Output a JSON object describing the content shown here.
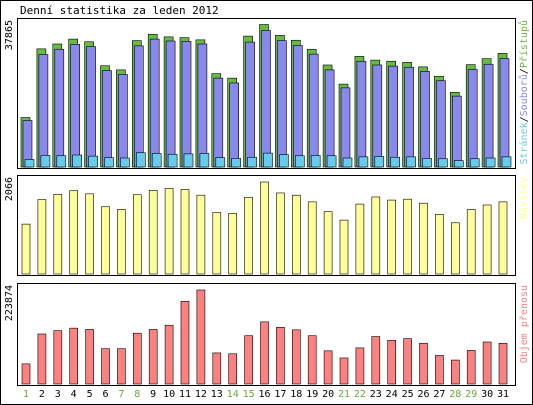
{
  "chart_data": [
    {
      "type": "bar",
      "title": "Denní statistika za leden 2012",
      "max_label": "37865",
      "legend": [
        {
          "name": "Stránek",
          "color": "#66ccee"
        },
        {
          "name": "Souborů",
          "color": "#8888ee"
        },
        {
          "name": "Přístupů",
          "color": "#66bb44"
        }
      ],
      "categories": [
        "1",
        "2",
        "3",
        "4",
        "5",
        "6",
        "7",
        "8",
        "9",
        "10",
        "11",
        "12",
        "13",
        "14",
        "15",
        "16",
        "17",
        "18",
        "19",
        "20",
        "21",
        "22",
        "23",
        "24",
        "25",
        "26",
        "27",
        "28",
        "29",
        "30",
        "31"
      ],
      "weekend_days": [
        "1",
        "7",
        "8",
        "14",
        "15",
        "21",
        "22",
        "28",
        "29"
      ],
      "ylim": [
        0,
        37865
      ],
      "series": [
        {
          "name": "Přístupů",
          "color": "#66bb44",
          "values": [
            13200,
            31500,
            32800,
            34100,
            33400,
            27000,
            25900,
            33700,
            35400,
            34700,
            34500,
            33900,
            24900,
            23700,
            34900,
            38000,
            35100,
            33800,
            31400,
            27200,
            22100,
            29500,
            28500,
            28200,
            27900,
            26700,
            24200,
            19900,
            27300,
            28900,
            30300
          ]
        },
        {
          "name": "Souborů",
          "color": "#8888ee",
          "values": [
            12400,
            30000,
            31400,
            32700,
            32100,
            25700,
            24700,
            32300,
            34100,
            33600,
            33500,
            32800,
            23700,
            22400,
            33300,
            36400,
            33700,
            32400,
            30100,
            25900,
            21100,
            28200,
            27200,
            26900,
            26600,
            25500,
            23000,
            18900,
            26000,
            27400,
            28900
          ]
        },
        {
          "name": "Stránek",
          "color": "#66ccee",
          "values": [
            2000,
            3100,
            3000,
            3200,
            2900,
            2500,
            2400,
            3800,
            3600,
            3400,
            3500,
            3600,
            2500,
            2300,
            2600,
            3700,
            3300,
            3000,
            3100,
            3000,
            2400,
            2700,
            2800,
            2600,
            2700,
            2300,
            2200,
            1700,
            2200,
            2400,
            2700
          ]
        }
      ]
    },
    {
      "type": "bar",
      "max_label": "2066",
      "legend": [
        {
          "name": "Návštěv",
          "color": "#ffff99"
        }
      ],
      "categories": [
        "1",
        "2",
        "3",
        "4",
        "5",
        "6",
        "7",
        "8",
        "9",
        "10",
        "11",
        "12",
        "13",
        "14",
        "15",
        "16",
        "17",
        "18",
        "19",
        "20",
        "21",
        "22",
        "23",
        "24",
        "25",
        "26",
        "27",
        "28",
        "29",
        "30",
        "31"
      ],
      "ylim": [
        0,
        2066
      ],
      "series": [
        {
          "name": "Návštěv",
          "color": "#ffff99",
          "values": [
            1120,
            1670,
            1790,
            1870,
            1800,
            1510,
            1450,
            1780,
            1880,
            1920,
            1900,
            1770,
            1380,
            1360,
            1720,
            2066,
            1820,
            1770,
            1620,
            1400,
            1210,
            1570,
            1730,
            1660,
            1680,
            1590,
            1340,
            1150,
            1450,
            1550,
            1620
          ]
        }
      ]
    },
    {
      "type": "bar",
      "max_label": "223874",
      "legend": [
        {
          "name": "Objem přenosu",
          "color": "#ff8080"
        }
      ],
      "categories": [
        "1",
        "2",
        "3",
        "4",
        "5",
        "6",
        "7",
        "8",
        "9",
        "10",
        "11",
        "12",
        "13",
        "14",
        "15",
        "16",
        "17",
        "18",
        "19",
        "20",
        "21",
        "22",
        "23",
        "24",
        "25",
        "26",
        "27",
        "28",
        "29",
        "30",
        "31"
      ],
      "ylim": [
        0,
        223874
      ],
      "series": [
        {
          "name": "Objem přenosu",
          "color": "#ff8080",
          "values": [
            48000,
            119000,
            127000,
            133000,
            130000,
            84000,
            84000,
            121000,
            130000,
            140000,
            197000,
            223874,
            74000,
            72000,
            115000,
            148000,
            135000,
            129000,
            115000,
            79000,
            62000,
            86000,
            113000,
            104000,
            108000,
            97000,
            68000,
            57000,
            80000,
            100000,
            97000
          ]
        }
      ]
    }
  ]
}
